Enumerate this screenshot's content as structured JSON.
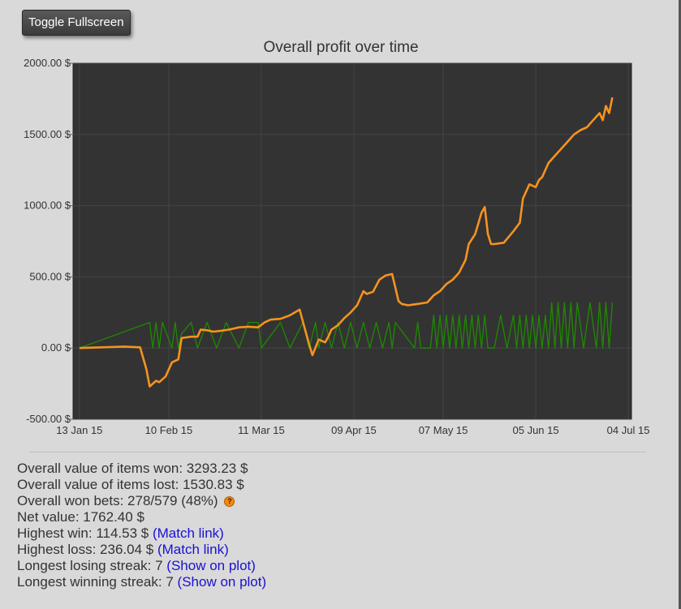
{
  "toolbar": {
    "fullscreen_label": "Toggle Fullscreen"
  },
  "chart_data": {
    "type": "line",
    "title": "Overall profit over time",
    "xlabel": "",
    "ylabel": "",
    "ylim": [
      -500,
      2000
    ],
    "y_ticks": [
      "-500.00 $",
      "0.00 $",
      "500.00 $",
      "1000.00 $",
      "1500.00 $",
      "2000.00 $"
    ],
    "y_tick_values": [
      -500,
      0,
      500,
      1000,
      1500,
      2000
    ],
    "x_ticks": [
      "13 Jan 15",
      "10 Feb 15",
      "11 Mar 15",
      "09 Apr 15",
      "07 May 15",
      "05 Jun 15",
      "04 Jul 15"
    ],
    "x_tick_values": [
      "2015-01-13",
      "2015-02-10",
      "2015-03-11",
      "2015-04-09",
      "2015-05-07",
      "2015-06-05",
      "2015-07-04"
    ],
    "xlim": [
      "2015-01-11",
      "2015-07-05"
    ],
    "grid": true,
    "colors": {
      "plot_bg": "#333333",
      "grid": "#454545",
      "profit": "#f7931e",
      "bets": "#1e8a00"
    },
    "series": [
      {
        "color": "#f7931e",
        "x": [
          "2015-01-13",
          "2015-01-20",
          "2015-01-27",
          "2015-02-01",
          "2015-02-03",
          "2015-02-04",
          "2015-02-05",
          "2015-02-06",
          "2015-02-07",
          "2015-02-09",
          "2015-02-11",
          "2015-02-13",
          "2015-02-14",
          "2015-02-17",
          "2015-02-19",
          "2015-02-20",
          "2015-02-22",
          "2015-02-24",
          "2015-02-26",
          "2015-03-01",
          "2015-03-04",
          "2015-03-07",
          "2015-03-10",
          "2015-03-12",
          "2015-03-14",
          "2015-03-17",
          "2015-03-20",
          "2015-03-23",
          "2015-03-26",
          "2015-03-27",
          "2015-03-29",
          "2015-03-31",
          "2015-04-01",
          "2015-04-02",
          "2015-04-04",
          "2015-04-06",
          "2015-04-08",
          "2015-04-10",
          "2015-04-12",
          "2015-04-13",
          "2015-04-15",
          "2015-04-17",
          "2015-04-19",
          "2015-04-21",
          "2015-04-23",
          "2015-04-24",
          "2015-04-26",
          "2015-04-29",
          "2015-05-02",
          "2015-05-04",
          "2015-05-06",
          "2015-05-08",
          "2015-05-10",
          "2015-05-12",
          "2015-05-14",
          "2015-05-15",
          "2015-05-17",
          "2015-05-19",
          "2015-05-20",
          "2015-05-21",
          "2015-05-22",
          "2015-05-23",
          "2015-05-26",
          "2015-05-29",
          "2015-05-31",
          "2015-06-01",
          "2015-06-03",
          "2015-06-05",
          "2015-06-06",
          "2015-06-07",
          "2015-06-09",
          "2015-06-11",
          "2015-06-13",
          "2015-06-15",
          "2015-06-17",
          "2015-06-19",
          "2015-06-21",
          "2015-06-23",
          "2015-06-25",
          "2015-06-26",
          "2015-06-27",
          "2015-06-28",
          "2015-06-29"
        ],
        "values": [
          0,
          5,
          10,
          5,
          -150,
          -270,
          -250,
          -230,
          -240,
          -200,
          -100,
          -80,
          70,
          80,
          80,
          130,
          125,
          115,
          120,
          130,
          145,
          150,
          145,
          180,
          200,
          205,
          230,
          270,
          25,
          -50,
          60,
          40,
          80,
          130,
          160,
          210,
          250,
          300,
          400,
          380,
          395,
          480,
          510,
          520,
          330,
          310,
          300,
          310,
          320,
          370,
          400,
          450,
          480,
          530,
          620,
          730,
          800,
          950,
          990,
          800,
          730,
          730,
          740,
          820,
          880,
          1050,
          1150,
          1130,
          1180,
          1200,
          1300,
          1350,
          1400,
          1450,
          1500,
          1530,
          1550,
          1600,
          1650,
          1600,
          1700,
          1650,
          1760
        ]
      },
      {
        "color": "#1e8a00",
        "x": [
          "2015-01-13",
          "2015-02-04",
          "2015-02-05",
          "2015-02-06",
          "2015-02-07",
          "2015-02-08",
          "2015-02-11",
          "2015-02-12",
          "2015-02-13",
          "2015-02-14",
          "2015-02-17",
          "2015-02-19",
          "2015-02-22",
          "2015-02-25",
          "2015-02-28",
          "2015-03-04",
          "2015-03-07",
          "2015-03-10",
          "2015-03-11",
          "2015-03-17",
          "2015-03-20",
          "2015-03-24",
          "2015-03-26",
          "2015-03-28",
          "2015-03-29",
          "2015-03-31",
          "2015-04-02",
          "2015-04-04",
          "2015-04-06",
          "2015-04-08",
          "2015-04-10",
          "2015-04-12",
          "2015-04-14",
          "2015-04-16",
          "2015-04-18",
          "2015-04-20",
          "2015-04-21",
          "2015-04-22",
          "2015-04-28",
          "2015-04-29",
          "2015-04-30",
          "2015-05-03",
          "2015-05-04",
          "2015-05-05",
          "2015-05-06",
          "2015-05-07",
          "2015-05-08",
          "2015-05-09",
          "2015-05-10",
          "2015-05-11",
          "2015-05-12",
          "2015-05-13",
          "2015-05-14",
          "2015-05-15",
          "2015-05-16",
          "2015-05-17",
          "2015-05-18",
          "2015-05-19",
          "2015-05-20",
          "2015-05-21",
          "2015-05-23",
          "2015-05-25",
          "2015-05-27",
          "2015-05-29",
          "2015-05-30",
          "2015-05-31",
          "2015-06-01",
          "2015-06-02",
          "2015-06-03",
          "2015-06-04",
          "2015-06-05",
          "2015-06-06",
          "2015-06-07",
          "2015-06-08",
          "2015-06-09",
          "2015-06-10",
          "2015-06-11",
          "2015-06-12",
          "2015-06-13",
          "2015-06-14",
          "2015-06-15",
          "2015-06-16",
          "2015-06-17",
          "2015-06-18",
          "2015-06-20",
          "2015-06-22",
          "2015-06-24",
          "2015-06-25",
          "2015-06-26",
          "2015-06-27",
          "2015-06-28",
          "2015-06-29"
        ],
        "values": [
          0,
          180,
          0,
          180,
          0,
          180,
          0,
          180,
          0,
          100,
          180,
          0,
          180,
          0,
          180,
          0,
          180,
          180,
          0,
          180,
          0,
          180,
          0,
          180,
          0,
          180,
          0,
          180,
          0,
          180,
          0,
          180,
          0,
          180,
          0,
          180,
          0,
          180,
          0,
          180,
          0,
          0,
          230,
          0,
          230,
          0,
          230,
          0,
          230,
          0,
          230,
          0,
          230,
          0,
          230,
          0,
          230,
          0,
          230,
          0,
          0,
          230,
          0,
          230,
          0,
          230,
          0,
          230,
          0,
          230,
          0,
          230,
          0,
          230,
          0,
          320,
          0,
          320,
          0,
          320,
          0,
          320,
          0,
          320,
          0,
          320,
          0,
          320,
          0,
          320,
          0,
          320
        ]
      }
    ]
  },
  "stats": {
    "items_won": "Overall value of items won: 3293.23 $",
    "items_lost": "Overall value of items lost: 1530.83 $",
    "won_bets": "Overall won bets: 278/579 (48%)",
    "won_bets_help_icon": "question-icon",
    "net_value": "Net value: 1762.40 $",
    "highest_win": "Highest win: 114.53 $",
    "highest_win_link": "(Match link)",
    "highest_loss": "Highest loss: 236.04 $",
    "highest_loss_link": "(Match link)",
    "losing_streak": "Longest losing streak: 7",
    "losing_streak_link": "(Show on plot)",
    "winning_streak": "Longest winning streak: 7",
    "winning_streak_link": "(Show on plot)"
  }
}
